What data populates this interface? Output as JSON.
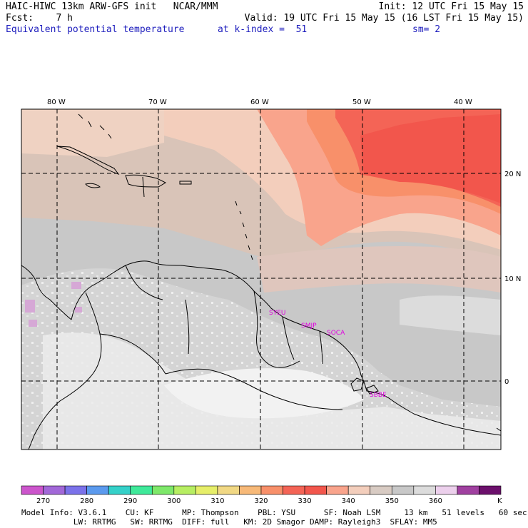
{
  "header": {
    "line1_left": "HAIC-HIWC 13km ARW-GFS init   NCAR/MMM",
    "line1_right": "Init: 12 UTC Fri 15 May 15",
    "line2_left": "Fcst:    7 h",
    "line2_right": "Valid: 19 UTC Fri 15 May 15 (16 LST Fri 15 May 15)",
    "line3_field": "Equivalent potential temperature",
    "line3_level": "at k-index =  51",
    "line3_smooth": "sm= 2"
  },
  "map": {
    "lon_labels": [
      "80 W",
      "70 W",
      "60 W",
      "50 W",
      "40 W"
    ],
    "lat_labels": [
      "20 N",
      "10 N",
      "0"
    ],
    "stations": [
      "SYEU",
      "SMJP",
      "SOCA",
      "SBBE"
    ]
  },
  "colorbar": {
    "colors": [
      "#cc55cc",
      "#a268d8",
      "#7b72ea",
      "#5b9aee",
      "#35d1c9",
      "#3fe99a",
      "#7ee86a",
      "#b7ee62",
      "#e6ee69",
      "#f1d884",
      "#f7b978",
      "#f8906a",
      "#f46456",
      "#f2564c",
      "#f9a48c",
      "#f3cebc",
      "#d8cbc3",
      "#c8c8c8",
      "#dcdcdc",
      "#ecd0ec",
      "#a040a0",
      "#6c106c"
    ],
    "tick_labels": [
      "270",
      "280",
      "290",
      "300",
      "310",
      "320",
      "330",
      "340",
      "350",
      "360"
    ],
    "unit": "K"
  },
  "footer": {
    "line1": "Model Info: V3.6.1    CU: KF      MP: Thompson    PBL: YSU      SF: Noah LSM     13 km   51 levels   60 sec",
    "line2": "           LW: RRTMG   SW: RRTMG  DIFF: full   KM: 2D Smagor DAMP: Rayleigh3  SFLAY: MM5"
  }
}
